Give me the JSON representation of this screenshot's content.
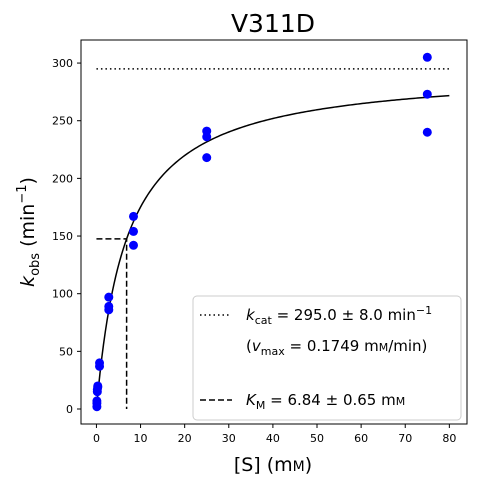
{
  "chart_data": {
    "type": "scatter",
    "title": "V311D",
    "xlabel": {
      "main": "[S] (m",
      "unit_small": "M",
      "close": ")"
    },
    "ylabel": {
      "main": "k",
      "sub": "obs",
      "mid": " (min",
      "sup": "−1",
      "close": ")"
    },
    "xlim": [
      -3.5,
      84
    ],
    "ylim": [
      -13,
      320
    ],
    "xticks": [
      0,
      10,
      20,
      30,
      40,
      50,
      60,
      70,
      80
    ],
    "yticks": [
      0,
      50,
      100,
      150,
      200,
      250,
      300
    ],
    "grid": false,
    "legend_position": "lower-right",
    "points_color": "#0000ff",
    "series": [
      {
        "name": "data",
        "kind": "scatter",
        "x": [
          0.1,
          0.1,
          0.1,
          0.2,
          0.2,
          0.3,
          0.3,
          0.7,
          0.7,
          2.8,
          2.8,
          2.8,
          8.4,
          8.4,
          8.4,
          25,
          25,
          25,
          75,
          75,
          75
        ],
        "y": [
          2,
          5,
          7,
          15,
          17,
          19,
          20,
          37,
          40,
          86,
          89,
          97,
          142,
          154,
          167,
          218,
          236,
          241,
          240,
          273,
          305
        ]
      },
      {
        "name": "fit",
        "kind": "michaelis-menten",
        "kcat": 295.0,
        "km": 6.84,
        "x_range": [
          0,
          80
        ]
      },
      {
        "name": "kcat-line",
        "kind": "hline-dotted",
        "y": 295.0,
        "x_range": [
          0,
          80
        ]
      },
      {
        "name": "km-marker",
        "kind": "dashed-l",
        "x": 6.84,
        "y": 147.5
      }
    ],
    "legend": [
      {
        "style": "dotted",
        "symbol": "k",
        "sub": "cat",
        "text": " = 295.0 ± 8.0 min",
        "sup": "−1"
      },
      {
        "style": "none",
        "open": "(",
        "symbol": "v",
        "sub": "max",
        "text": " = 0.1749 m",
        "unit_small": "M",
        "tail": "/min)"
      },
      {
        "style": "dashed",
        "symbol": "K",
        "sub": "M",
        "text": " = 6.84 ± 0.65 m",
        "unit_small": "M"
      }
    ]
  }
}
